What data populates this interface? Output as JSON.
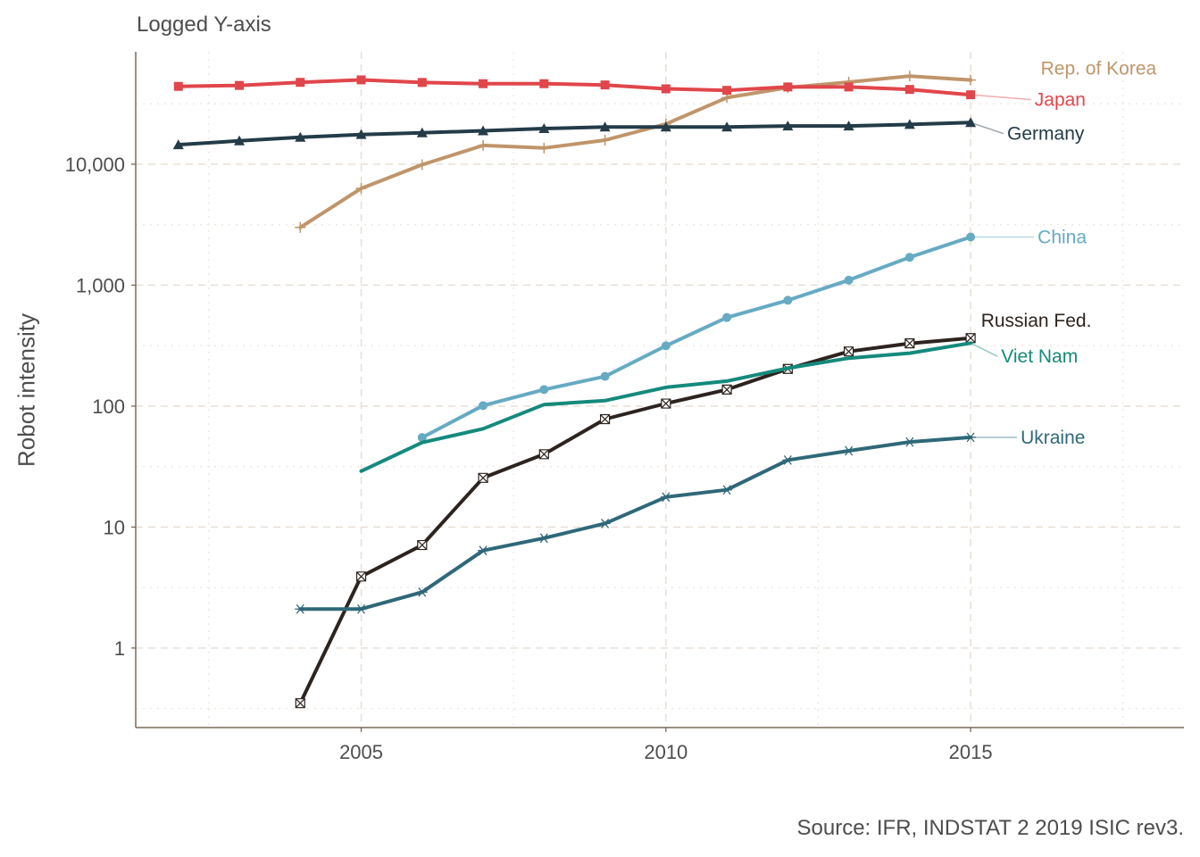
{
  "chart_data": {
    "type": "line",
    "title": "Logged Y-axis",
    "ylabel": "Robot intensity",
    "xlabel": "",
    "caption": "Source: IFR, INDSTAT 2 2019 ISIC rev3.",
    "y_scale": "log10",
    "xlim": [
      2001.3,
      2018.5
    ],
    "ylim": [
      0.22,
      85000
    ],
    "x_ticks": [
      2005,
      2010,
      2015
    ],
    "x_tick_labels": [
      "2005",
      "2010",
      "2015"
    ],
    "y_ticks": [
      1,
      10,
      100,
      1000,
      10000
    ],
    "y_tick_labels": [
      "1",
      "10",
      "100",
      "1,000",
      "10,000"
    ],
    "grid": true,
    "legend": "direct labels at line ends (right)",
    "series": [
      {
        "name": "Rep. of Korea",
        "color": "#c0956a",
        "marker": "plus",
        "x": [
          2004,
          2005,
          2006,
          2007,
          2008,
          2009,
          2010,
          2011,
          2012,
          2013,
          2014,
          2015
        ],
        "y": [
          3000,
          6300,
          9900,
          14300,
          13600,
          15800,
          21500,
          35500,
          43000,
          47700,
          53500,
          49700
        ]
      },
      {
        "name": "Japan",
        "color": "#e0464b",
        "marker": "square",
        "x": [
          2002,
          2003,
          2004,
          2005,
          2006,
          2007,
          2008,
          2009,
          2010,
          2011,
          2012,
          2013,
          2014,
          2015
        ],
        "y": [
          44000,
          44800,
          47500,
          49800,
          47400,
          46300,
          46300,
          45200,
          42000,
          40800,
          43500,
          43500,
          41500,
          37500
        ]
      },
      {
        "name": "Germany",
        "color": "#243b48",
        "marker": "triangle",
        "x": [
          2002,
          2003,
          2004,
          2005,
          2006,
          2007,
          2008,
          2009,
          2010,
          2011,
          2012,
          2013,
          2014,
          2015
        ],
        "y": [
          14500,
          15600,
          16700,
          17600,
          18200,
          18900,
          19700,
          20300,
          20300,
          20300,
          20700,
          20700,
          21300,
          22100
        ]
      },
      {
        "name": "China",
        "color": "#66aac3",
        "marker": "circle",
        "x": [
          2006,
          2007,
          2008,
          2009,
          2010,
          2011,
          2012,
          2013,
          2014,
          2015
        ],
        "y": [
          55,
          101,
          137,
          176,
          315,
          540,
          750,
          1100,
          1700,
          2500
        ]
      },
      {
        "name": "Russian Fed.",
        "color": "#2d241f",
        "marker": "square-x",
        "x": [
          2004,
          2005,
          2006,
          2007,
          2008,
          2009,
          2010,
          2011,
          2012,
          2013,
          2014,
          2015
        ],
        "y": [
          0.35,
          3.9,
          7.1,
          25.5,
          40,
          78,
          105,
          137,
          203,
          283,
          330,
          365
        ]
      },
      {
        "name": "Viet Nam",
        "color": "#148a7c",
        "marker": "none",
        "x": [
          2005,
          2006,
          2007,
          2008,
          2009,
          2010,
          2011,
          2012,
          2013,
          2014,
          2015
        ],
        "y": [
          29,
          50,
          65,
          103,
          111,
          143,
          161,
          206,
          249,
          274,
          332
        ]
      },
      {
        "name": "Ukraine",
        "color": "#2f6878",
        "marker": "asterisk",
        "x": [
          2004,
          2005,
          2006,
          2007,
          2008,
          2009,
          2010,
          2011,
          2012,
          2013,
          2014,
          2015
        ],
        "y": [
          2.1,
          2.1,
          2.9,
          6.4,
          8.1,
          10.7,
          17.7,
          20.3,
          35.8,
          42.7,
          50.5,
          55.2
        ]
      }
    ],
    "annotations": [
      {
        "text": "Rep. of Korea",
        "series": "Rep. of Korea",
        "x": 2016.15,
        "y": 62000,
        "anchor": "start",
        "leader": false
      },
      {
        "text": "Japan",
        "series": "Japan",
        "x": 2016.05,
        "y": 34200,
        "anchor": "start",
        "leader": true
      },
      {
        "text": "Germany",
        "series": "Germany",
        "x": 2015.6,
        "y": 17900,
        "anchor": "start",
        "leader": true
      },
      {
        "text": "China",
        "series": "China",
        "x": 2016.1,
        "y": 2500,
        "anchor": "start",
        "leader": true
      },
      {
        "text": "Russian Fed.",
        "series": "Russian Fed.",
        "x": 2015.17,
        "y": 510,
        "anchor": "start",
        "leader": false
      },
      {
        "text": "Viet Nam",
        "series": "Viet Nam",
        "x": 2015.5,
        "y": 258,
        "anchor": "start",
        "leader": true
      },
      {
        "text": "Ukraine",
        "series": "Ukraine",
        "x": 2015.82,
        "y": 55.2,
        "anchor": "start",
        "leader": true
      }
    ]
  }
}
